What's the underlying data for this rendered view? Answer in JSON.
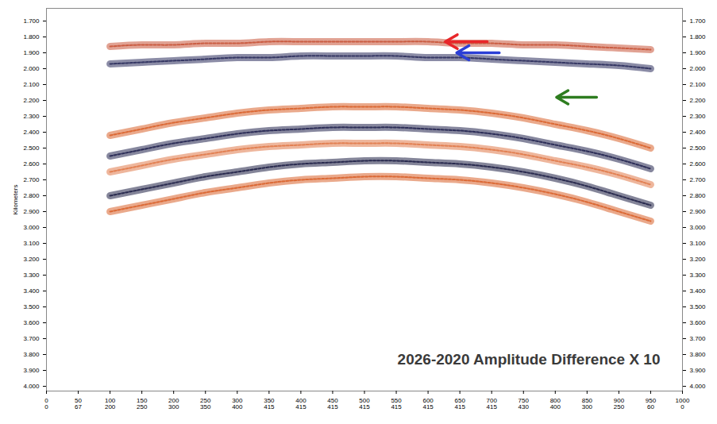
{
  "chart_data": {
    "type": "seismic_section",
    "annotation": "2026-2020 Amplitude Difference X 10",
    "y_label": "Kilometers",
    "xlim": [
      0,
      1000
    ],
    "ylim": [
      1.62,
      4.03
    ],
    "xticks": [
      0,
      50,
      100,
      150,
      200,
      250,
      300,
      350,
      400,
      450,
      500,
      550,
      600,
      650,
      700,
      750,
      800,
      850,
      900,
      950,
      1000
    ],
    "x_secondary_labels": [
      0,
      67,
      200,
      250,
      300,
      350,
      400,
      415,
      415,
      415,
      415,
      415,
      415,
      415,
      415,
      430,
      400,
      300,
      250,
      60,
      0
    ],
    "yticks": [
      {
        "value": 1.7,
        "label": "1.700"
      },
      {
        "value": 1.8,
        "label": "1.800"
      },
      {
        "value": 1.9,
        "label": "1.900"
      },
      {
        "value": 2.0,
        "label": "2.000"
      },
      {
        "value": 2.1,
        "label": "2.100"
      },
      {
        "value": 2.2,
        "label": "2.200"
      },
      {
        "value": 2.3,
        "label": "2.300"
      },
      {
        "value": 2.4,
        "label": "2.400"
      },
      {
        "value": 2.5,
        "label": "2.500"
      },
      {
        "value": 2.6,
        "label": "2.600"
      },
      {
        "value": 2.7,
        "label": "2.700"
      },
      {
        "value": 2.8,
        "label": "2.800"
      },
      {
        "value": 2.9,
        "label": "2.900"
      },
      {
        "value": 3.0,
        "label": "3.000"
      },
      {
        "value": 3.1,
        "label": "3.100"
      },
      {
        "value": 3.2,
        "label": "3.200"
      },
      {
        "value": 3.3,
        "label": "3.300"
      },
      {
        "value": 3.4,
        "label": "3.400"
      },
      {
        "value": 3.5,
        "label": "3.500"
      },
      {
        "value": 3.6,
        "label": "3.600"
      },
      {
        "value": 3.7,
        "label": "3.700"
      },
      {
        "value": 3.8,
        "label": "3.800"
      },
      {
        "value": 3.9,
        "label": "3.900"
      },
      {
        "value": 4.0,
        "label": "4.000"
      }
    ],
    "x": [
      100,
      150,
      200,
      250,
      300,
      350,
      400,
      450,
      500,
      550,
      600,
      650,
      700,
      750,
      800,
      850,
      900,
      950
    ],
    "series": [
      {
        "color": "#c8553a",
        "values": [
          1.86,
          1.85,
          1.85,
          1.84,
          1.84,
          1.83,
          1.83,
          1.83,
          1.83,
          1.83,
          1.83,
          1.84,
          1.84,
          1.85,
          1.85,
          1.86,
          1.87,
          1.88
        ]
      },
      {
        "color": "#2b2d5c",
        "values": [
          1.97,
          1.96,
          1.95,
          1.94,
          1.93,
          1.93,
          1.92,
          1.92,
          1.92,
          1.92,
          1.93,
          1.93,
          1.94,
          1.95,
          1.96,
          1.97,
          1.98,
          2.0
        ]
      },
      {
        "color": "#d9622b",
        "values": [
          2.42,
          2.38,
          2.34,
          2.31,
          2.28,
          2.26,
          2.25,
          2.24,
          2.24,
          2.24,
          2.25,
          2.26,
          2.28,
          2.31,
          2.35,
          2.39,
          2.44,
          2.5
        ]
      },
      {
        "color": "#22244f",
        "values": [
          2.55,
          2.51,
          2.47,
          2.44,
          2.41,
          2.39,
          2.38,
          2.37,
          2.37,
          2.37,
          2.38,
          2.39,
          2.41,
          2.44,
          2.48,
          2.52,
          2.57,
          2.63
        ]
      },
      {
        "color": "#e07a4a",
        "values": [
          2.65,
          2.61,
          2.57,
          2.54,
          2.51,
          2.49,
          2.48,
          2.47,
          2.47,
          2.47,
          2.48,
          2.49,
          2.51,
          2.54,
          2.58,
          2.62,
          2.67,
          2.73
        ]
      },
      {
        "color": "#1f2046",
        "values": [
          2.8,
          2.76,
          2.72,
          2.68,
          2.65,
          2.62,
          2.6,
          2.59,
          2.58,
          2.58,
          2.59,
          2.6,
          2.62,
          2.65,
          2.69,
          2.74,
          2.8,
          2.86
        ]
      },
      {
        "color": "#d9622b",
        "values": [
          2.9,
          2.86,
          2.82,
          2.78,
          2.75,
          2.72,
          2.7,
          2.69,
          2.68,
          2.68,
          2.69,
          2.7,
          2.72,
          2.75,
          2.79,
          2.84,
          2.9,
          2.96
        ]
      }
    ],
    "arrows": [
      {
        "color": "#e8262a",
        "x1": 693,
        "x2": 627,
        "y": 1.83
      },
      {
        "color": "#2b3fd6",
        "x1": 712,
        "x2": 645,
        "y": 1.9
      },
      {
        "color": "#2e7d1f",
        "x1": 865,
        "x2": 802,
        "y": 2.18
      }
    ]
  }
}
